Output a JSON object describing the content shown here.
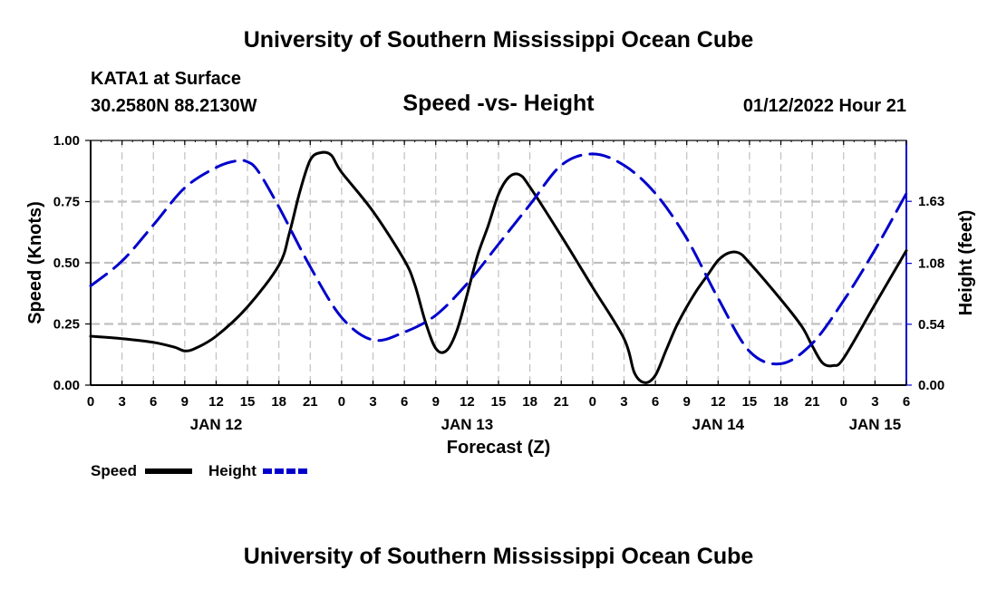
{
  "header": {
    "title": "University of Southern Mississippi Ocean Cube",
    "station": "KATA1 at Surface",
    "coords": "30.2580N  88.2130W",
    "subtitle": "Speed -vs- Height",
    "datetime": "01/12/2022 Hour 21"
  },
  "footer": {
    "title": "University of Southern Mississippi Ocean Cube"
  },
  "chart_data": {
    "type": "line",
    "title": "Speed -vs- Height",
    "xlabel": "Forecast (Z)",
    "ylabel": "Speed (Knots)",
    "y2label": "Height (feet)",
    "xlim": [
      0,
      78
    ],
    "ylim": [
      0,
      1
    ],
    "y2lim": [
      0,
      2.17
    ],
    "x_ticks": [
      0,
      3,
      6,
      9,
      12,
      15,
      18,
      21,
      24,
      27,
      30,
      33,
      36,
      39,
      42,
      45,
      48,
      51,
      54,
      57,
      60,
      63,
      66,
      69,
      72,
      75,
      78
    ],
    "x_tick_labels": [
      "0",
      "3",
      "6",
      "9",
      "12",
      "15",
      "18",
      "21",
      "0",
      "3",
      "6",
      "9",
      "12",
      "15",
      "18",
      "21",
      "0",
      "3",
      "6",
      "9",
      "12",
      "15",
      "18",
      "21",
      "0",
      "3",
      "6"
    ],
    "date_labels": [
      {
        "x": 12,
        "label": "JAN 12"
      },
      {
        "x": 36,
        "label": "JAN 13"
      },
      {
        "x": 60,
        "label": "JAN 14"
      },
      {
        "x": 75,
        "label": "JAN 15"
      }
    ],
    "y_ticks": [
      0,
      0.25,
      0.5,
      0.75,
      1.0
    ],
    "y_tick_labels": [
      "0.00",
      "0.25",
      "0.50",
      "0.75",
      "1.00"
    ],
    "y2_ticks": [
      0,
      0.54,
      1.08,
      1.63
    ],
    "y2_tick_labels": [
      "0.00",
      "0.54",
      "1.08",
      "1.63"
    ],
    "grid": true,
    "series": [
      {
        "name": "Speed",
        "axis": "left",
        "color": "#000000",
        "style": "solid",
        "x": [
          0,
          3,
          6,
          8,
          9,
          10,
          12,
          15,
          18,
          19,
          20,
          21,
          22,
          23,
          24,
          27,
          30,
          31,
          32,
          33,
          34,
          35,
          36,
          37,
          38,
          39,
          40,
          41,
          42,
          45,
          48,
          51,
          52,
          53,
          54,
          55,
          56,
          57,
          58,
          59,
          60,
          61,
          62,
          63,
          66,
          68,
          69,
          70,
          71,
          72,
          75,
          78
        ],
        "y": [
          0.2,
          0.19,
          0.175,
          0.155,
          0.14,
          0.15,
          0.2,
          0.32,
          0.49,
          0.62,
          0.79,
          0.92,
          0.95,
          0.94,
          0.87,
          0.71,
          0.51,
          0.41,
          0.26,
          0.15,
          0.14,
          0.22,
          0.37,
          0.53,
          0.65,
          0.78,
          0.85,
          0.86,
          0.81,
          0.61,
          0.4,
          0.19,
          0.05,
          0.01,
          0.04,
          0.14,
          0.24,
          0.32,
          0.39,
          0.45,
          0.51,
          0.54,
          0.54,
          0.5,
          0.35,
          0.24,
          0.16,
          0.09,
          0.08,
          0.11,
          0.33,
          0.55
        ]
      },
      {
        "name": "Height",
        "axis": "right",
        "color": "#0000cc",
        "style": "dashed",
        "x": [
          0,
          3,
          6,
          9,
          12,
          14,
          15,
          16,
          18,
          21,
          24,
          27,
          30,
          33,
          36,
          39,
          42,
          45,
          48,
          51,
          54,
          57,
          60,
          63,
          66,
          69,
          72,
          75,
          78
        ],
        "y": [
          0.88,
          1.1,
          1.42,
          1.75,
          1.93,
          1.99,
          1.98,
          1.9,
          1.58,
          1.05,
          0.6,
          0.4,
          0.47,
          0.62,
          0.9,
          1.25,
          1.6,
          1.95,
          2.05,
          1.95,
          1.7,
          1.3,
          0.77,
          0.3,
          0.19,
          0.37,
          0.75,
          1.2,
          1.7
        ]
      }
    ],
    "legend": [
      {
        "label": "Speed",
        "color": "#000000",
        "style": "solid"
      },
      {
        "label": "Height",
        "color": "#0000cc",
        "style": "dashed"
      }
    ],
    "legend_position": "bottom-left"
  }
}
